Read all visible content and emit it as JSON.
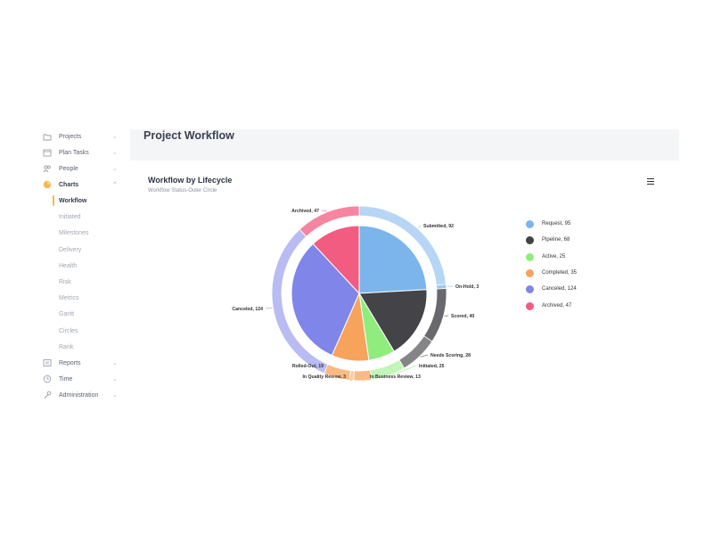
{
  "page": {
    "title": "Project Workflow"
  },
  "sidebar": {
    "items": [
      {
        "label": "Projects",
        "icon": "folder-icon"
      },
      {
        "label": "Plan Tasks",
        "icon": "calendar-icon"
      },
      {
        "label": "People",
        "icon": "people-icon"
      },
      {
        "label": "Charts",
        "icon": "pie-icon"
      }
    ],
    "sub_items": [
      {
        "label": "Workflow",
        "active": true
      },
      {
        "label": "Initiated"
      },
      {
        "label": "Milestones"
      },
      {
        "label": "Delivery"
      },
      {
        "label": "Health"
      },
      {
        "label": "Risk"
      },
      {
        "label": "Metrics"
      },
      {
        "label": "Gantt"
      },
      {
        "label": "Circles"
      },
      {
        "label": "Rank"
      }
    ],
    "bottom_items": [
      {
        "label": "Reports",
        "icon": "reports-icon"
      },
      {
        "label": "Time",
        "icon": "clock-icon"
      },
      {
        "label": "Administration",
        "icon": "wrench-icon"
      }
    ],
    "accent_color": "#f5b94a"
  },
  "card": {
    "title": "Workflow by Lifecycle",
    "subtitle": "Workflow Status-Outer Circle",
    "menu_icon": "hamburger-icon"
  },
  "chart_data": {
    "type": "pie",
    "title": "Workflow by Lifecycle",
    "subtitle": "Workflow Status-Outer Circle",
    "legend_position": "right",
    "inner": [
      {
        "name": "Request",
        "value": 95,
        "label": "Request, 95",
        "color": "#7cb5ec"
      },
      {
        "name": "Pipeline",
        "value": 68,
        "label": "Pipeline, 68",
        "color": "#434348"
      },
      {
        "name": "Active",
        "value": 25,
        "label": "Active, 25",
        "color": "#90ed7d"
      },
      {
        "name": "Completed",
        "value": 35,
        "label": "Completed, 35",
        "color": "#f7a35c"
      },
      {
        "name": "Canceled",
        "value": 124,
        "label": "Canceled, 124",
        "color": "#8085e9"
      },
      {
        "name": "Archived",
        "value": 47,
        "label": "Archived, 47",
        "color": "#f15c80"
      }
    ],
    "outer": [
      {
        "name": "Submitted",
        "value": 92,
        "label": "Submitted, 92",
        "parent": "Request"
      },
      {
        "name": "On-Hold",
        "value": 3,
        "label": "On-Hold, 3",
        "parent": "Request"
      },
      {
        "name": "Scored",
        "value": 40,
        "label": "Scored, 40",
        "parent": "Pipeline"
      },
      {
        "name": "Needs Scoring",
        "value": 28,
        "label": "Needs Scoring, 28",
        "parent": "Pipeline"
      },
      {
        "name": "Initiated",
        "value": 25,
        "label": "Initiated, 25",
        "parent": "Active"
      },
      {
        "name": "In Business Review",
        "value": 13,
        "label": "In Business Review, 13",
        "parent": "Completed"
      },
      {
        "name": "In Quality Review",
        "value": 3,
        "label": "In Quality Review, 3",
        "parent": "Completed"
      },
      {
        "name": "Rolled-Out",
        "value": 19,
        "label": "Rolled-Out, 19",
        "parent": "Completed"
      },
      {
        "name": "Canceled",
        "value": 124,
        "label": "Canceled, 124",
        "parent": "Canceled"
      },
      {
        "name": "Archived",
        "value": 47,
        "label": "Archived, 47",
        "parent": "Archived"
      }
    ]
  }
}
